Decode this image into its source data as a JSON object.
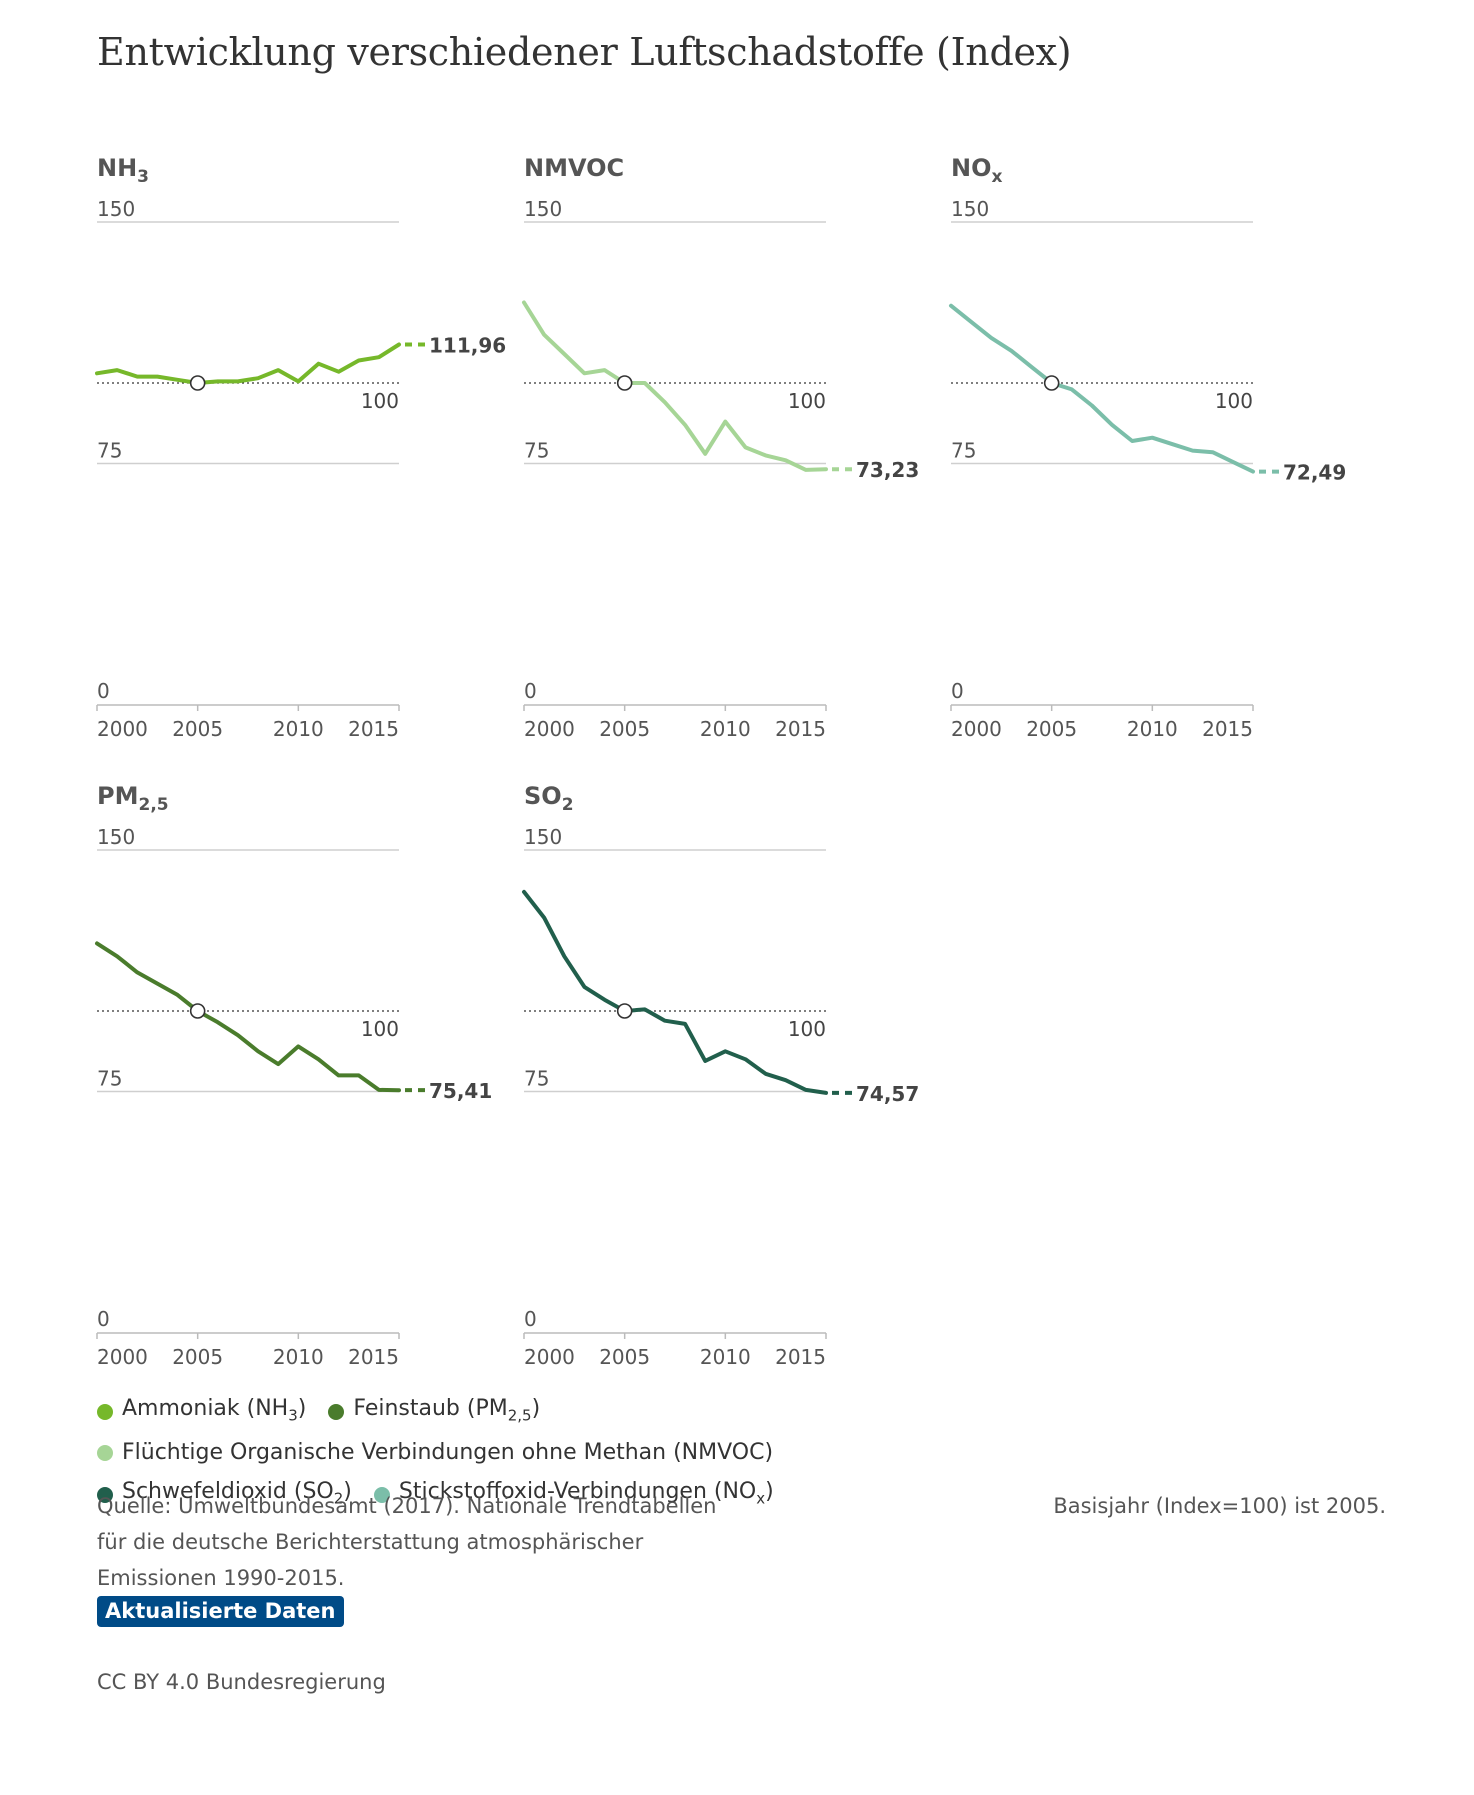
{
  "title": "Entwicklung verschiedener Luftschadstoffe (Index)",
  "chart_data": [
    {
      "type": "line",
      "panel_title": "NH",
      "panel_title_sub": "3",
      "color": "#76b82a",
      "x": [
        2000,
        2001,
        2002,
        2003,
        2004,
        2005,
        2006,
        2007,
        2008,
        2009,
        2010,
        2011,
        2012,
        2013,
        2014,
        2015
      ],
      "y": [
        103,
        104,
        102,
        102,
        101,
        100,
        100.5,
        100.5,
        101.5,
        104,
        100.5,
        106,
        103.5,
        107,
        108,
        111.96
      ],
      "base_year": 2005,
      "base_value": 100,
      "last_label": "111,96",
      "yticks": [
        "150",
        "100",
        "75",
        "0"
      ],
      "xticks": [
        "2000",
        "2005",
        "2010",
        "2015"
      ],
      "ylim": [
        0,
        150
      ]
    },
    {
      "type": "line",
      "panel_title": "NMVOC",
      "panel_title_sub": "",
      "color": "#a6d596",
      "x": [
        2000,
        2001,
        2002,
        2003,
        2004,
        2005,
        2006,
        2007,
        2008,
        2009,
        2010,
        2011,
        2012,
        2013,
        2014,
        2015
      ],
      "y": [
        125,
        115,
        109,
        103,
        104,
        100,
        100,
        94,
        87,
        78,
        88,
        80,
        77.5,
        76,
        73,
        73.23
      ],
      "base_year": 2005,
      "base_value": 100,
      "last_label": "73,23",
      "yticks": [
        "150",
        "100",
        "75",
        "0"
      ],
      "xticks": [
        "2000",
        "2005",
        "2010",
        "2015"
      ],
      "ylim": [
        0,
        150
      ]
    },
    {
      "type": "line",
      "panel_title": "NO",
      "panel_title_sub": "x",
      "color": "#7bbea9",
      "x": [
        2000,
        2001,
        2002,
        2003,
        2004,
        2005,
        2006,
        2007,
        2008,
        2009,
        2010,
        2011,
        2012,
        2013,
        2014,
        2015
      ],
      "y": [
        124,
        119,
        114,
        110,
        105,
        100,
        98,
        93,
        87,
        82,
        83,
        81,
        79,
        78.5,
        75.5,
        72.49
      ],
      "base_year": 2005,
      "base_value": 100,
      "last_label": "72,49",
      "yticks": [
        "150",
        "100",
        "75",
        "0"
      ],
      "xticks": [
        "2000",
        "2005",
        "2010",
        "2015"
      ],
      "ylim": [
        0,
        150
      ]
    },
    {
      "type": "line",
      "panel_title": "PM",
      "panel_title_sub": "2,5",
      "color": "#4a7c2c",
      "x": [
        2000,
        2001,
        2002,
        2003,
        2004,
        2005,
        2006,
        2007,
        2008,
        2009,
        2010,
        2011,
        2012,
        2013,
        2014,
        2015
      ],
      "y": [
        121,
        117,
        112,
        108.5,
        105,
        100,
        96.5,
        92.5,
        87.5,
        83.5,
        89,
        85,
        80,
        80,
        75.5,
        75.41
      ],
      "base_year": 2005,
      "base_value": 100,
      "last_label": "75,41",
      "yticks": [
        "150",
        "100",
        "75",
        "0"
      ],
      "xticks": [
        "2000",
        "2005",
        "2010",
        "2015"
      ],
      "ylim": [
        0,
        150
      ]
    },
    {
      "type": "line",
      "panel_title": "SO",
      "panel_title_sub": "2",
      "color": "#215f4c",
      "x": [
        2000,
        2001,
        2002,
        2003,
        2004,
        2005,
        2006,
        2007,
        2008,
        2009,
        2010,
        2011,
        2012,
        2013,
        2014,
        2015
      ],
      "y": [
        137,
        129,
        117,
        107.5,
        103.5,
        100,
        100.5,
        97,
        96,
        84.5,
        87.5,
        85,
        80.5,
        78.5,
        75.5,
        74.57
      ],
      "base_year": 2005,
      "base_value": 100,
      "last_label": "74,57",
      "yticks": [
        "150",
        "100",
        "75",
        "0"
      ],
      "xticks": [
        "2000",
        "2005",
        "2010",
        "2015"
      ],
      "ylim": [
        0,
        150
      ]
    }
  ],
  "legend": [
    {
      "label": "Ammoniak (NH",
      "sub": "3",
      "end": ")",
      "color": "#76b82a"
    },
    {
      "label": "Feinstaub (PM",
      "sub": "2,5",
      "end": ")",
      "color": "#4a7c2c"
    },
    {
      "label": "Flüchtige Organische Verbindungen ohne Methan (NMVOC)",
      "sub": "",
      "end": "",
      "color": "#a6d596"
    },
    {
      "label": "Schwefeldioxid (SO",
      "sub": "2",
      "end": ")",
      "color": "#215f4c"
    },
    {
      "label": "Stickstoffoxid-Verbindungen (NO",
      "sub": "x",
      "end": ")",
      "color": "#7bbea9"
    }
  ],
  "source_text": "Quelle: Umweltbundesamt (2017). Nationale Trendtabellen für die deutsche Berichterstattung atmosphärischer Emissionen 1990-2015.",
  "basis_text": "Basisjahr (Index=100) ist 2005.",
  "update_button_label": "Aktualisierte Daten",
  "license_text": "CC BY 4.0 Bundesregierung"
}
